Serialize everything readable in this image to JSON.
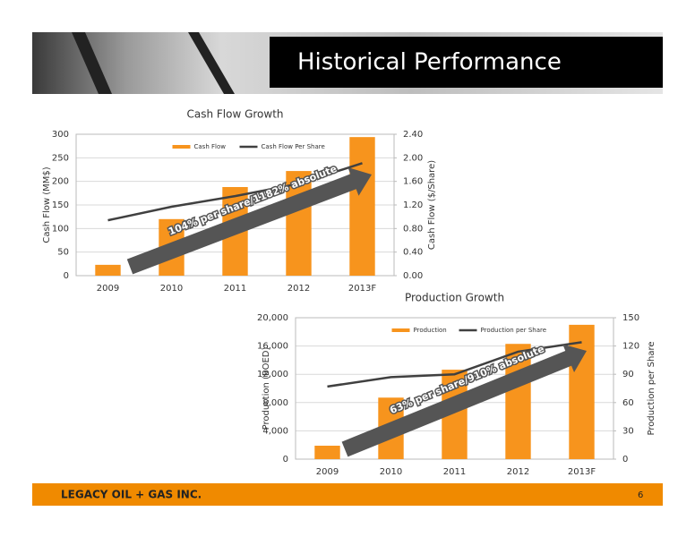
{
  "header": {
    "title": "Historical Performance"
  },
  "footer": {
    "company": "LEGACY OIL + GAS INC.",
    "page": 6
  },
  "chart_data": [
    {
      "type": "bar",
      "title": "Cash Flow Growth",
      "y_label": "Cash Flow (MM$)",
      "y2_label": "Cash Flow ($/Share)",
      "categories": [
        "2009",
        "2010",
        "2011",
        "2012",
        "2013F"
      ],
      "series": [
        {
          "name": "Cash Flow",
          "type": "bar",
          "color": "#f7941d",
          "values": [
            23,
            120,
            188,
            222,
            294
          ]
        },
        {
          "name": "Cash Flow Per Share",
          "type": "line",
          "axis": "y2",
          "color": "#404040",
          "values": [
            0.94,
            1.17,
            1.35,
            1.56,
            1.91
          ]
        }
      ],
      "ylim": [
        0,
        300
      ],
      "yticks": [
        0,
        50,
        100,
        150,
        200,
        250,
        300
      ],
      "y2lim": [
        0,
        2.4
      ],
      "y2ticks": [
        {
          "value": 0,
          "label": "0.00"
        },
        {
          "value": 0.4,
          "label": "0.40"
        },
        {
          "value": 0.8,
          "label": "0.80"
        },
        {
          "value": 1.2,
          "label": "1.20"
        },
        {
          "value": 1.6,
          "label": "1.60"
        },
        {
          "value": 2.0,
          "label": "2.00"
        },
        {
          "value": 2.4,
          "label": "2.40"
        }
      ],
      "grid": true,
      "legend": "upper center",
      "annotation": "104% per share/1182% absolute"
    },
    {
      "type": "bar",
      "title": "Production Growth",
      "y_label": "Production (BOED)",
      "y2_label": "Production per Share",
      "categories": [
        "2009",
        "2010",
        "2011",
        "2012",
        "2013F"
      ],
      "series": [
        {
          "name": "Production",
          "type": "bar",
          "color": "#f7941d",
          "values": [
            1900,
            8700,
            12650,
            16300,
            19000
          ]
        },
        {
          "name": "Production per Share",
          "type": "line",
          "axis": "y2",
          "color": "#404040",
          "values": [
            77,
            87,
            90,
            114,
            124
          ]
        }
      ],
      "ylim": [
        0,
        20000
      ],
      "yticks": [
        0,
        {
          "value": 4000,
          "label": "4,000"
        },
        {
          "value": 8000,
          "label": "8,000"
        },
        {
          "value": 12000,
          "label": "12,000"
        },
        {
          "value": 16000,
          "label": "16,000"
        },
        {
          "value": 20000,
          "label": "20,000"
        }
      ],
      "y2lim": [
        0,
        150
      ],
      "y2ticks": [
        0,
        30,
        60,
        90,
        120,
        150
      ],
      "grid": true,
      "legend": "upper center",
      "annotation": "63% per share/910% absolute"
    }
  ]
}
